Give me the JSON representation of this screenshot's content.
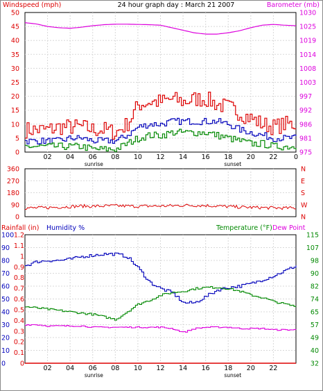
{
  "chart_data": [
    {
      "type": "line",
      "title": "24 hour graph day : March 21 2007",
      "left_axis_label": "Windspeed (mph)",
      "right_axis_label": "Barometer (mb)",
      "left_ylim": [
        0,
        50
      ],
      "left_ticks": [
        "0",
        "5",
        "10",
        "15",
        "20",
        "25",
        "30",
        "35",
        "40",
        "45",
        "50"
      ],
      "right_ylim": [
        975,
        1030
      ],
      "right_ticks": [
        "975",
        "981",
        "986",
        "992",
        "997",
        "1003",
        "1008",
        "1014",
        "1019",
        "1025",
        "1030"
      ],
      "x_hours": [
        0,
        1,
        2,
        3,
        4,
        5,
        6,
        7,
        8,
        9,
        10,
        11,
        12,
        13,
        14,
        15,
        16,
        17,
        18,
        19,
        20,
        21,
        22,
        23,
        24
      ],
      "x_tick_labels": [
        "02",
        "04",
        "06",
        "08",
        "10",
        "12",
        "14",
        "16",
        "18",
        "20",
        "22",
        "0"
      ],
      "x_tick_hours": [
        2,
        4,
        6,
        8,
        10,
        12,
        14,
        16,
        18,
        20,
        22,
        24
      ],
      "annotations": [
        {
          "text": "sunrise",
          "hour": 6.1
        },
        {
          "text": "sunset",
          "hour": 18.4
        }
      ],
      "grid": true,
      "series": [
        {
          "color": "#dd0000",
          "axis": "left",
          "values": [
            8,
            8,
            8,
            9,
            9,
            9,
            8,
            8,
            7,
            10,
            17,
            18,
            18,
            19,
            18,
            19,
            19,
            17,
            16,
            14,
            12,
            10,
            9,
            10,
            10
          ]
        },
        {
          "color": "#0000bb",
          "axis": "left",
          "values": [
            4,
            4,
            4,
            4,
            5,
            5,
            4,
            4,
            4,
            6,
            9,
            10,
            10,
            11,
            11,
            11,
            11,
            11,
            10,
            8,
            7,
            6,
            5,
            5,
            5
          ]
        },
        {
          "color": "#008800",
          "axis": "left",
          "values": [
            2,
            2,
            2,
            2,
            2,
            2,
            1,
            1,
            1,
            3,
            5,
            6,
            6,
            7,
            7,
            7,
            7,
            6,
            5,
            4,
            3,
            3,
            2,
            2,
            2
          ]
        },
        {
          "color": "#dd00dd",
          "axis": "right",
          "values": [
            1026,
            1025.5,
            1024.5,
            1024,
            1023.8,
            1024.2,
            1024.8,
            1025.2,
            1025.4,
            1025.4,
            1025.3,
            1025.2,
            1025,
            1024,
            1023,
            1022,
            1021.5,
            1021.5,
            1022,
            1022.8,
            1024,
            1025,
            1025.3,
            1025,
            1024.8
          ]
        }
      ]
    },
    {
      "type": "line",
      "left_ylim": [
        0,
        360
      ],
      "left_ticks": [
        "0",
        "90",
        "180",
        "270",
        "360"
      ],
      "right_labels": [
        "N",
        "W",
        "S",
        "E",
        "N"
      ],
      "x_tick_hours": [
        2,
        4,
        6,
        8,
        10,
        12,
        14,
        16,
        18,
        20,
        22,
        24
      ],
      "grid": true,
      "series": [
        {
          "color": "#dd0000",
          "axis": "left",
          "values": [
            65,
            66,
            68,
            72,
            76,
            80,
            78,
            80,
            82,
            80,
            78,
            80,
            80,
            82,
            85,
            85,
            84,
            80,
            76,
            72,
            70,
            68,
            66,
            65,
            65
          ]
        }
      ]
    },
    {
      "type": "line",
      "header_labels": [
        "Rainfall (in)",
        "Humidity %",
        "Temperature (°F)",
        "Dew Point"
      ],
      "humidity_ylim": [
        0,
        100
      ],
      "humidity_ticks": [
        "0",
        "10",
        "20",
        "30",
        "40",
        "50",
        "60",
        "70",
        "80",
        "90",
        "100"
      ],
      "rain_ylim": [
        0,
        1.2
      ],
      "rain_ticks": [
        "0",
        "0.1",
        "0.2",
        "0.3",
        "0.4",
        "0.5",
        "0.6",
        "0.7",
        "0.8",
        "0.9",
        "1",
        "1.1",
        "1.2"
      ],
      "temp_ylim": [
        32,
        115
      ],
      "temp_ticks": [
        "32",
        "40",
        "49",
        "57",
        "65",
        "74",
        "82",
        "90",
        "98",
        "107",
        "115"
      ],
      "x_tick_labels": [
        "02",
        "04",
        "06",
        "08",
        "10",
        "12",
        "14",
        "16",
        "18",
        "20",
        "22"
      ],
      "x_tick_hours": [
        2,
        4,
        6,
        8,
        10,
        12,
        14,
        16,
        18,
        20,
        22
      ],
      "annotations": [
        {
          "text": "sunrise",
          "hour": 6.1
        },
        {
          "text": "sunset",
          "hour": 18.4
        }
      ],
      "grid": true,
      "series": [
        {
          "color": "#0000bb",
          "axis": "humidity",
          "values": [
            76,
            79,
            80,
            80,
            81,
            83,
            84,
            85,
            85,
            83,
            74,
            63,
            58,
            55,
            47,
            47,
            52,
            57,
            59,
            60,
            62,
            65,
            68,
            72,
            76
          ]
        },
        {
          "color": "#008800",
          "axis": "humidity",
          "values": [
            44,
            43,
            42,
            41,
            40,
            39,
            38,
            36,
            34,
            40,
            46,
            49,
            53,
            55,
            56,
            58,
            59,
            59,
            58,
            56,
            53,
            51,
            48,
            46,
            44
          ]
        },
        {
          "color": "#dd00dd",
          "axis": "humidity",
          "values": [
            30,
            30,
            29,
            29,
            29,
            29,
            28,
            28,
            28,
            28,
            28,
            28,
            28,
            27,
            24,
            27,
            28,
            28,
            28,
            27,
            27,
            27,
            26,
            26,
            26
          ]
        },
        {
          "color": "#dd0000",
          "axis": "rain",
          "values": [
            0,
            0,
            0,
            0,
            0,
            0,
            0,
            0,
            0,
            0,
            0,
            0,
            0,
            0,
            0,
            0,
            0,
            0,
            0,
            0,
            0,
            0,
            0,
            0,
            0
          ]
        }
      ]
    }
  ]
}
